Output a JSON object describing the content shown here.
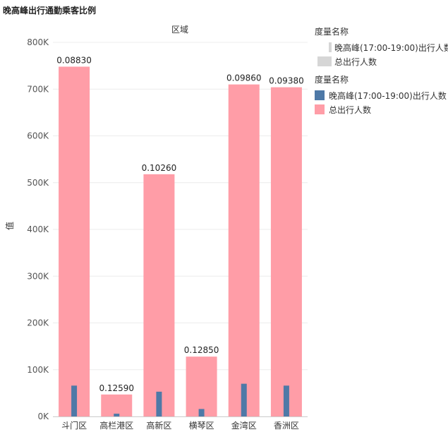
{
  "title": "晚高峰出行通勤乘客比例",
  "chart_data": {
    "type": "bar",
    "header": "区域",
    "ylabel": "值",
    "categories": [
      "斗门区",
      "高栏港区",
      "高新区",
      "横琴区",
      "金湾区",
      "香洲区"
    ],
    "ylim": [
      0,
      800000
    ],
    "yticks": [
      0,
      100000,
      200000,
      300000,
      400000,
      500000,
      600000,
      700000,
      800000
    ],
    "ytick_labels": [
      "0K",
      "100K",
      "200K",
      "300K",
      "400K",
      "500K",
      "600K",
      "700K",
      "800K"
    ],
    "grid": true,
    "series": [
      {
        "name": "总出行人数",
        "color": "#ff9da7",
        "values": [
          748000,
          47000,
          518000,
          128000,
          710000,
          704000
        ]
      },
      {
        "name": "晚高峰(17:00-19:00)出行人数",
        "color": "#4e79a7",
        "values": [
          66000,
          6000,
          53000,
          16000,
          70000,
          66000
        ]
      }
    ],
    "data_labels": [
      "0.08830",
      "0.12590",
      "0.10260",
      "0.12850",
      "0.09860",
      "0.09380"
    ]
  },
  "legends": {
    "size_legend": {
      "title": "度量名称",
      "items": [
        "晚高峰(17:00-19:00)出行人数",
        "总出行人数"
      ]
    },
    "color_legend": {
      "title": "度量名称",
      "items": [
        {
          "label": "晚高峰(17:00-19:00)出行人数",
          "color": "#4e79a7"
        },
        {
          "label": "总出行人数",
          "color": "#ff9da7"
        }
      ]
    }
  }
}
